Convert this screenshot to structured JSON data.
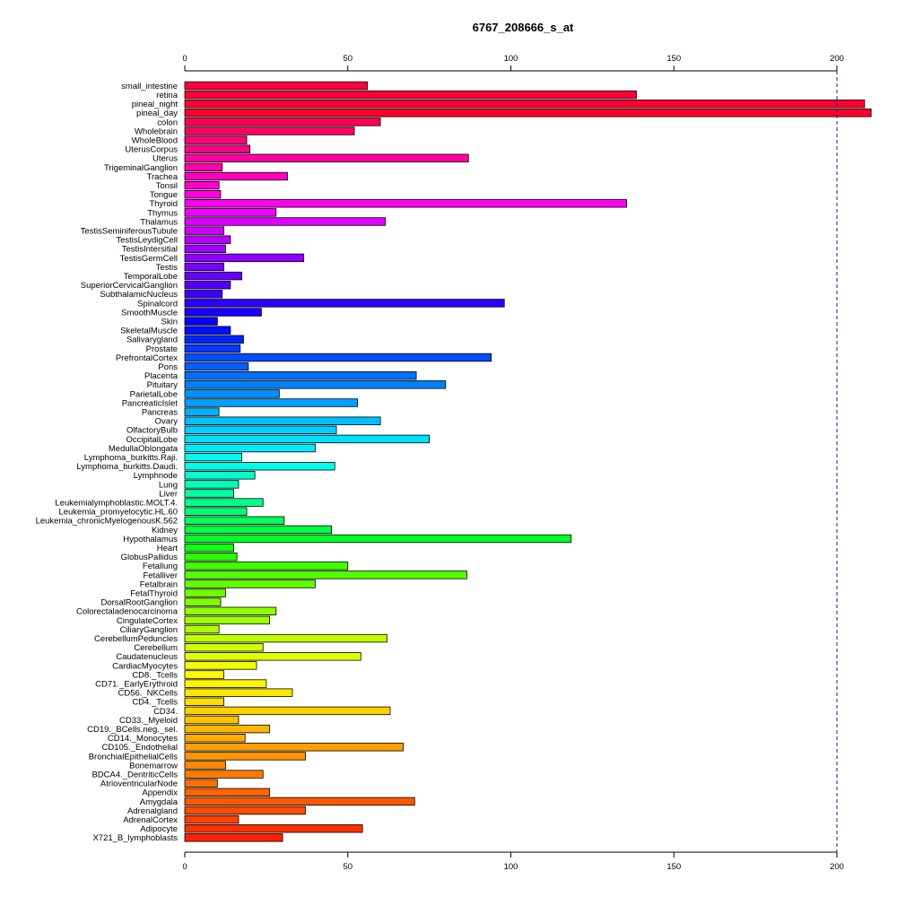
{
  "chart_data": {
    "type": "bar",
    "orientation": "horizontal",
    "title": "6767_208666_s_at",
    "xlabel": "",
    "ylabel": "",
    "xlim": [
      0,
      210
    ],
    "x_ticks": [
      0,
      50,
      100,
      150,
      200
    ],
    "reference_line": 200,
    "grid": false,
    "legend": "none",
    "categories": [
      "small_intestine",
      "retina",
      "pineal_night",
      "pineal_day",
      "colon",
      "Wholebrain",
      "WholeBlood",
      "UterusCorpus",
      "Uterus",
      "TrigeminalGanglion",
      "Trachea",
      "Tonsil",
      "Tongue",
      "Thyroid",
      "Thymus",
      "Thalamus",
      "TestisSeminiferousTubule",
      "TestisLeydigCell",
      "TestisIntersitial",
      "TestisGermCell",
      "Testis",
      "TemporalLobe",
      "SuperiorCervicalGanglion",
      "SubthalamicNucleus",
      "Spinalcord",
      "SmoothMuscle",
      "Skin",
      "SkeletalMuscle",
      "Salivarygland",
      "Prostate",
      "PrefrontalCortex",
      "Pons",
      "Placenta",
      "Pituitary",
      "ParietalLobe",
      "PancreaticIslet",
      "Pancreas",
      "Ovary",
      "OlfactoryBulb",
      "OccipitalLobe",
      "MedullaOblongata",
      "Lymphoma_burkitts.Raji.",
      "Lymphoma_burkitts.Daudi.",
      "Lymphnode",
      "Lung",
      "Liver",
      "Leukemialymphoblastic.MOLT.4.",
      "Leukemia_promyelocytic.HL.60",
      "Leukemia_chronicMyelogenousK.562",
      "Kidney",
      "Hypothalamus",
      "Heart",
      "GlobusPallidus",
      "Fetallung",
      "Fetalliver",
      "Fetalbrain",
      "FetalThyroid",
      "DorsalRootGanglion",
      "Colorectaladenocarcinoma",
      "CingulateCortex",
      "CiliaryGanglion",
      "CerebellumPeduncles",
      "Cerebellum",
      "Caudatenucleus",
      "CardiacMyocytes",
      "CD8._Tcells",
      "CD71._EarlyErythroid",
      "CD56._NKCells",
      "CD4._Tcells",
      "CD34.",
      "CD33._Myeloid",
      "CD19._BCells.neg._sel.",
      "CD14._Monocytes",
      "CD105._Endothelial",
      "BronchialEpithelialCells",
      "Bonemarrow",
      "BDCA4._DentriticCells",
      "AtrioventricularNode",
      "Appendix",
      "Amygdala",
      "Adrenalgland",
      "AdrenalCortex",
      "Adipocyte",
      "X721_B_lymphoblasts"
    ],
    "values": [
      56,
      138.5,
      208.5,
      210.5,
      60,
      52,
      19,
      20,
      87,
      11.5,
      31.5,
      10.5,
      11,
      135.5,
      28,
      61.5,
      12,
      14,
      12.5,
      36.5,
      12,
      17.5,
      14,
      11.5,
      98,
      23.5,
      10,
      14,
      18,
      17,
      94,
      19.5,
      71,
      80,
      29,
      53,
      10.5,
      60,
      46.5,
      75,
      40,
      17.5,
      46,
      21.5,
      16.5,
      15,
      24,
      19,
      30.5,
      45,
      118.5,
      15,
      16,
      50,
      86.5,
      40,
      12.5,
      11,
      28,
      26,
      10.5,
      62,
      24,
      54,
      22,
      12,
      25,
      33,
      12,
      63,
      16.5,
      26,
      18.5,
      67,
      37,
      12.5,
      24,
      10,
      26,
      70.5,
      37,
      16.5,
      54.5,
      30
    ],
    "bar_colors": [
      "#ff0040",
      "#ff0038",
      "#ff0030",
      "#ff0028",
      "#ff0050",
      "#ff0060",
      "#ff0078",
      "#ff0088",
      "#ff00a0",
      "#ff00b0",
      "#ff00c0",
      "#ff00d0",
      "#ff00e0",
      "#ff00f0",
      "#f000ff",
      "#e000ff",
      "#cc00ff",
      "#b800ff",
      "#a400ff",
      "#9000ff",
      "#7c00ff",
      "#6800ff",
      "#5400ff",
      "#4000ff",
      "#2c00ff",
      "#1800ff",
      "#0800ff",
      "#0010ff",
      "#0024ff",
      "#0038ff",
      "#004cff",
      "#0060ff",
      "#0070ff",
      "#0080ff",
      "#0090ff",
      "#00a0ff",
      "#00b0ff",
      "#00c0ff",
      "#00d0ff",
      "#00e0ff",
      "#00ecf8",
      "#00f8f0",
      "#00ffe8",
      "#00ffd0",
      "#00ffb8",
      "#00ffa0",
      "#00ff88",
      "#00ff70",
      "#00ff58",
      "#00ff40",
      "#00ff28",
      "#10ff10",
      "#28ff00",
      "#40ff00",
      "#50ff00",
      "#60ff00",
      "#70ff00",
      "#80ff00",
      "#90ff00",
      "#a0ff00",
      "#b0ff00",
      "#c0ff00",
      "#d0ff00",
      "#e0ff00",
      "#f0ff00",
      "#ffff00",
      "#fff400",
      "#ffe800",
      "#ffdc00",
      "#ffd000",
      "#ffc400",
      "#ffb800",
      "#ffac00",
      "#ffa000",
      "#ff9400",
      "#ff8800",
      "#ff7c00",
      "#ff7000",
      "#ff6400",
      "#ff5800",
      "#ff4c00",
      "#ff4000",
      "#ff3000",
      "#ff2000"
    ]
  }
}
